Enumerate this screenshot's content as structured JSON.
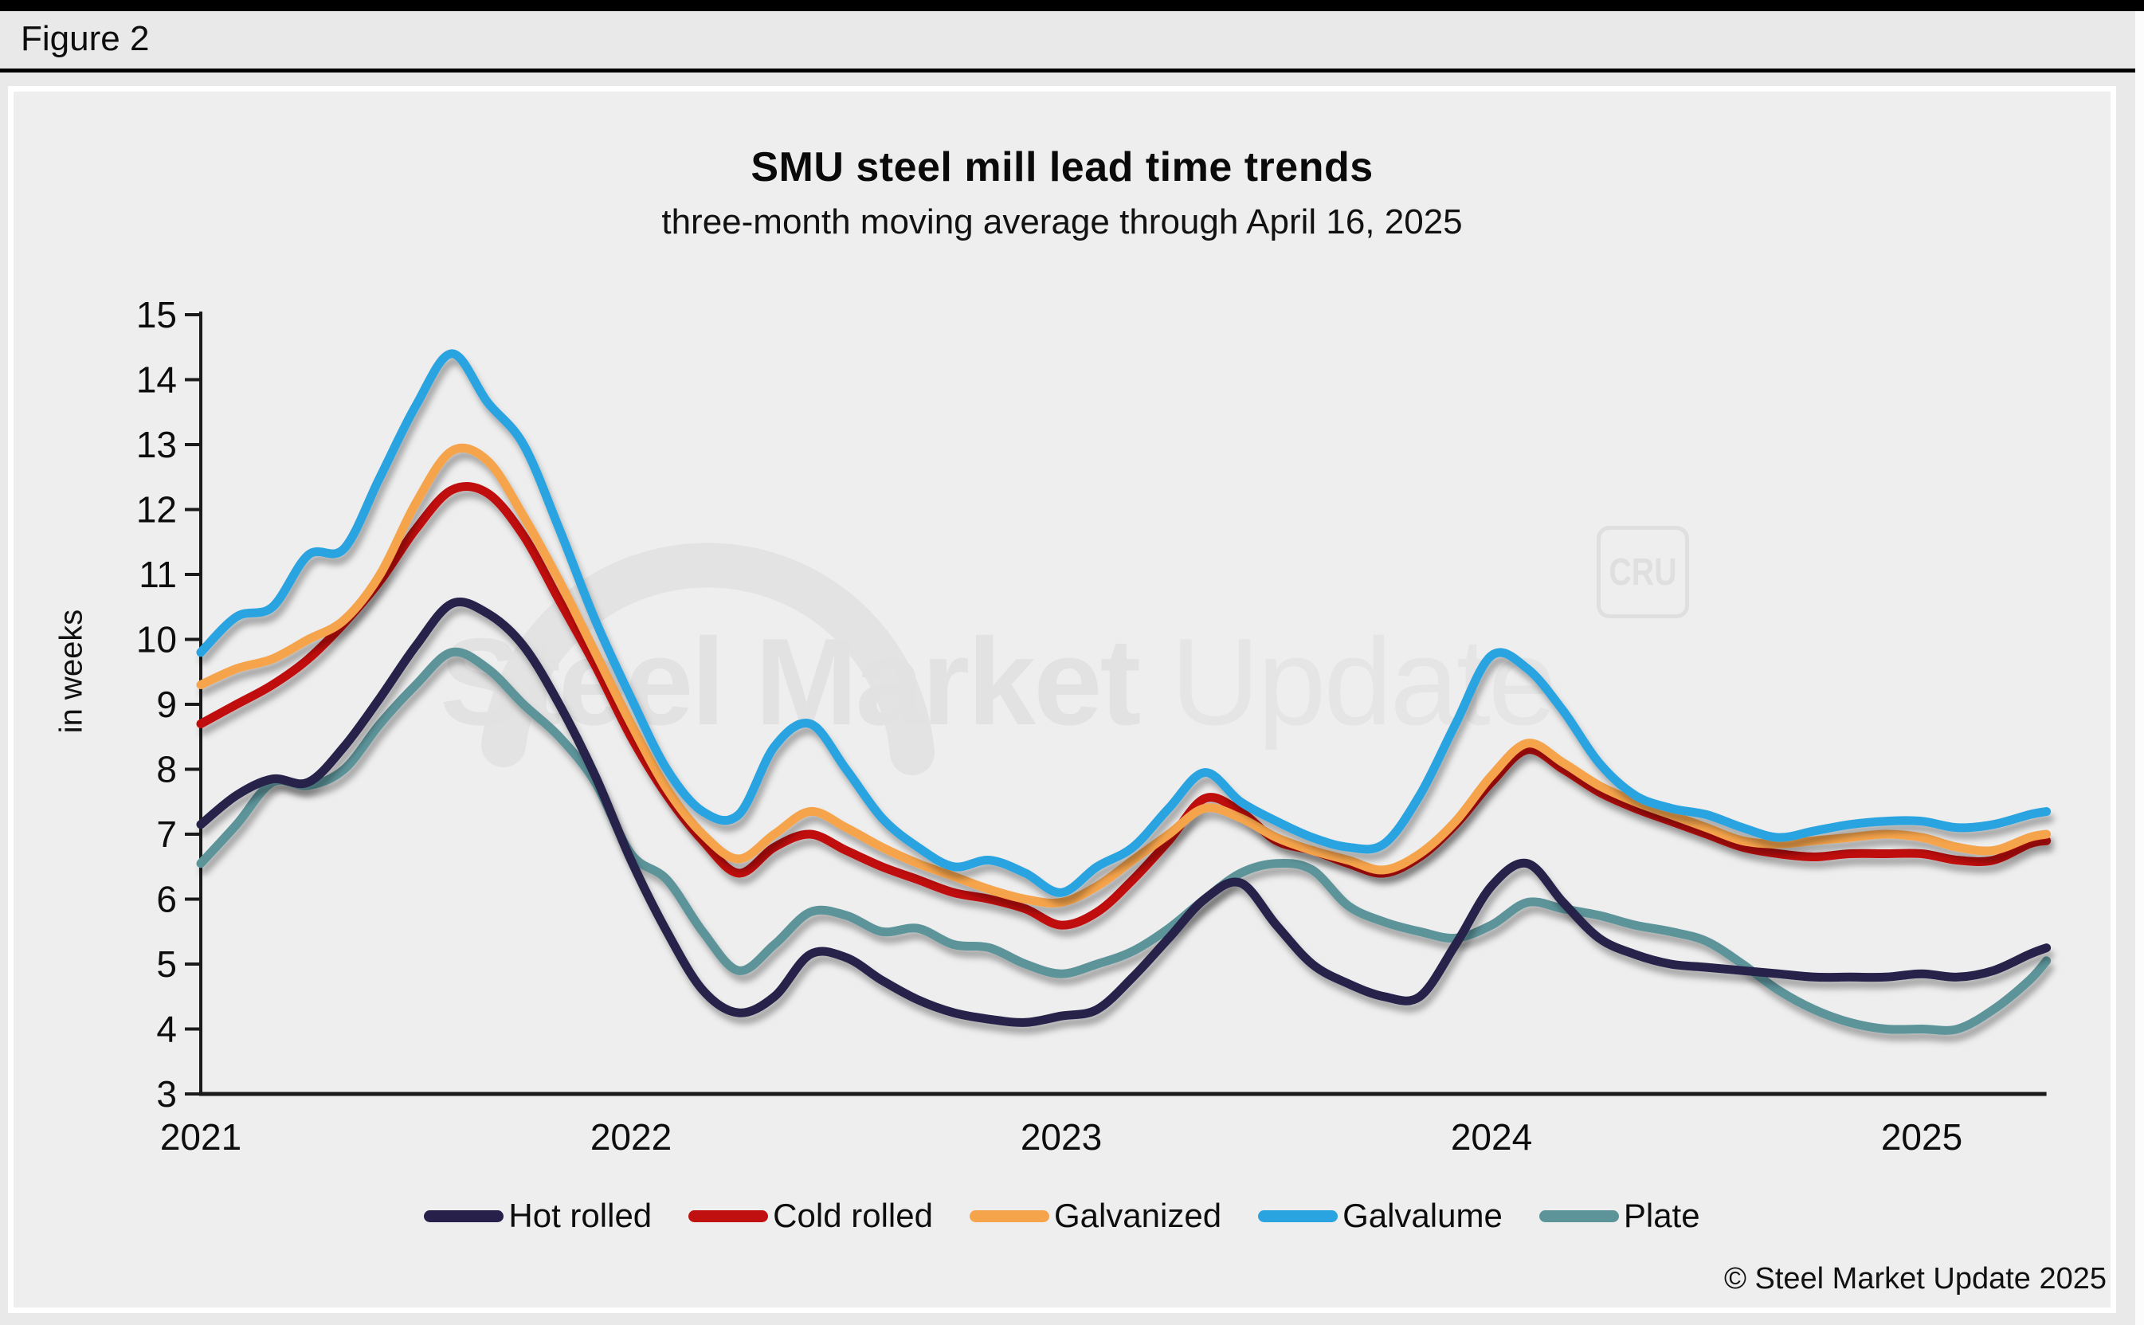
{
  "page": {
    "figure_label": "Figure 2",
    "copyright": "© Steel Market Update 2025"
  },
  "watermark": {
    "brand_bold": "Steel Market",
    "brand_light": " Update",
    "cru_label": "CRU"
  },
  "chart_data": {
    "type": "line",
    "title": "SMU steel mill lead time trends",
    "subtitle": "three-month moving average through April 16, 2025",
    "ylabel": "in weeks",
    "ylim": [
      3,
      15
    ],
    "ytick_interval": 1,
    "xticks": [
      2021,
      2022,
      2023,
      2024,
      2025
    ],
    "x_start": 2021.0,
    "x_step_years": 0.08333,
    "x_end": 2025.29,
    "grid": false,
    "legend_position": "bottom",
    "axis_color": "#1a1a1a",
    "series": [
      {
        "name": "Hot rolled",
        "color": "#27204a",
        "values": [
          7.15,
          7.6,
          7.85,
          7.8,
          8.35,
          9.1,
          9.9,
          10.55,
          10.4,
          9.9,
          9.0,
          7.9,
          6.6,
          5.5,
          4.6,
          4.25,
          4.5,
          5.15,
          5.1,
          4.75,
          4.45,
          4.25,
          4.15,
          4.1,
          4.2,
          4.3,
          4.8,
          5.4,
          6.0,
          6.25,
          5.6,
          5.0,
          4.7,
          4.5,
          4.5,
          5.3,
          6.2,
          6.55,
          5.95,
          5.4,
          5.15,
          5.0,
          4.95,
          4.9,
          4.85,
          4.8,
          4.8,
          4.8,
          4.85,
          4.8,
          4.9,
          5.15,
          5.25
        ]
      },
      {
        "name": "Cold rolled",
        "color": "#c01010",
        "values": [
          8.7,
          9.0,
          9.3,
          9.7,
          10.25,
          10.9,
          11.7,
          12.3,
          12.25,
          11.6,
          10.6,
          9.6,
          8.5,
          7.6,
          6.9,
          6.4,
          6.8,
          7.0,
          6.75,
          6.5,
          6.3,
          6.1,
          6.0,
          5.85,
          5.6,
          5.8,
          6.3,
          6.9,
          7.55,
          7.35,
          6.9,
          6.75,
          6.55,
          6.4,
          6.65,
          7.15,
          7.8,
          8.3,
          8.0,
          7.65,
          7.4,
          7.2,
          7.0,
          6.8,
          6.7,
          6.65,
          6.7,
          6.7,
          6.7,
          6.6,
          6.6,
          6.85,
          6.9
        ]
      },
      {
        "name": "Galvanized",
        "color": "#f6a44c",
        "values": [
          9.3,
          9.55,
          9.7,
          10.0,
          10.3,
          11.0,
          12.1,
          12.9,
          12.75,
          11.9,
          10.9,
          9.8,
          8.7,
          7.7,
          7.0,
          6.62,
          7.0,
          7.35,
          7.1,
          6.8,
          6.55,
          6.35,
          6.15,
          6.0,
          5.95,
          6.2,
          6.6,
          7.0,
          7.4,
          7.25,
          6.95,
          6.75,
          6.6,
          6.45,
          6.7,
          7.2,
          7.9,
          8.4,
          8.1,
          7.75,
          7.5,
          7.3,
          7.1,
          6.9,
          6.85,
          6.9,
          6.95,
          7.0,
          6.95,
          6.8,
          6.75,
          6.95,
          7.0
        ]
      },
      {
        "name": "Galvalume",
        "color": "#2aa4e1",
        "values": [
          9.8,
          10.35,
          10.5,
          11.3,
          11.4,
          12.5,
          13.6,
          14.4,
          13.65,
          13.0,
          11.7,
          10.3,
          9.1,
          8.0,
          7.35,
          7.3,
          8.35,
          8.7,
          8.0,
          7.25,
          6.8,
          6.5,
          6.6,
          6.4,
          6.1,
          6.5,
          6.8,
          7.4,
          7.95,
          7.5,
          7.2,
          6.95,
          6.8,
          6.85,
          7.6,
          8.7,
          9.75,
          9.55,
          8.9,
          8.1,
          7.6,
          7.4,
          7.3,
          7.1,
          6.95,
          7.05,
          7.15,
          7.2,
          7.2,
          7.1,
          7.15,
          7.3,
          7.35
        ]
      },
      {
        "name": "Plate",
        "color": "#5c949a",
        "values": [
          6.55,
          7.15,
          7.8,
          7.75,
          8.0,
          8.7,
          9.3,
          9.8,
          9.55,
          9.0,
          8.5,
          7.8,
          6.7,
          6.3,
          5.5,
          4.9,
          5.3,
          5.8,
          5.75,
          5.5,
          5.55,
          5.3,
          5.25,
          5.0,
          4.85,
          5.0,
          5.2,
          5.55,
          6.0,
          6.4,
          6.55,
          6.45,
          5.9,
          5.65,
          5.5,
          5.4,
          5.6,
          5.95,
          5.85,
          5.75,
          5.6,
          5.5,
          5.35,
          5.0,
          4.6,
          4.3,
          4.1,
          4.0,
          4.0,
          4.0,
          4.3,
          4.75,
          5.05
        ]
      }
    ]
  }
}
